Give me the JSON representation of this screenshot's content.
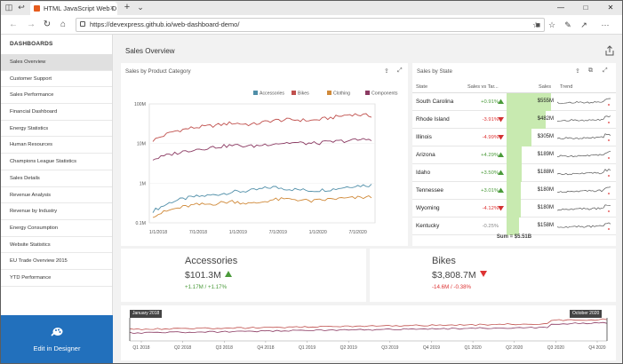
{
  "browser": {
    "tab_title": "HTML JavaScript Web D",
    "url": "https://devexpress.github.io/web-dashboard-demo/"
  },
  "sidebar": {
    "header": "DASHBOARDS",
    "items": [
      {
        "label": "Sales Overview",
        "active": true
      },
      {
        "label": "Customer Support"
      },
      {
        "label": "Sales Performance"
      },
      {
        "label": "Financial Dashboard"
      },
      {
        "label": "Energy Statistics"
      },
      {
        "label": "Human Resources"
      },
      {
        "label": "Champions League Statistics"
      },
      {
        "label": "Sales Details"
      },
      {
        "label": "Revenue Analysis"
      },
      {
        "label": "Revenue by Industry"
      },
      {
        "label": "Energy Consumption"
      },
      {
        "label": "Website Statistics"
      },
      {
        "label": "EU Trade Overview 2015"
      },
      {
        "label": "YTD Performance"
      }
    ],
    "designer_label": "Edit in Designer"
  },
  "main": {
    "title": "Sales Overview"
  },
  "product_chart": {
    "title": "Sales by Product Category",
    "legend": [
      {
        "name": "Accessories",
        "color": "#4f8ea8"
      },
      {
        "name": "Bikes",
        "color": "#c0504d"
      },
      {
        "name": "Clothing",
        "color": "#d08a3a"
      },
      {
        "name": "Components",
        "color": "#8b3a62"
      }
    ]
  },
  "chart_data": {
    "type": "line",
    "title": "Sales by Product Category",
    "y_scale": "log",
    "ylim": [
      0.1,
      100
    ],
    "yticks": [
      "0.1M",
      "1M",
      "10M",
      "100M"
    ],
    "xticks": [
      "1/1/2018",
      "7/1/2018",
      "1/1/2019",
      "7/1/2019",
      "1/1/2020",
      "7/1/2020"
    ],
    "x": [
      "2018-01",
      "2018-04",
      "2018-07",
      "2018-10",
      "2019-01",
      "2019-04",
      "2019-07",
      "2019-10",
      "2020-01",
      "2020-04",
      "2020-07",
      "2020-10"
    ],
    "series": [
      {
        "name": "Accessories",
        "color": "#4f8ea8",
        "values": [
          0.2,
          0.35,
          0.45,
          0.5,
          0.6,
          0.65,
          0.8,
          0.7,
          0.65,
          0.7,
          0.85,
          0.9
        ]
      },
      {
        "name": "Bikes",
        "color": "#c0504d",
        "values": [
          12,
          20,
          25,
          28,
          33,
          30,
          38,
          40,
          38,
          45,
          55,
          50
        ]
      },
      {
        "name": "Clothing",
        "color": "#d08a3a",
        "values": [
          0.15,
          0.22,
          0.28,
          0.3,
          0.35,
          0.3,
          0.38,
          0.4,
          0.35,
          0.4,
          0.42,
          0.45
        ]
      },
      {
        "name": "Components",
        "color": "#8b3a62",
        "values": [
          4,
          5.5,
          7,
          8,
          9,
          8.5,
          10,
          10.5,
          10,
          11,
          12,
          13
        ]
      }
    ]
  },
  "state_grid": {
    "title": "Sales by State",
    "columns": [
      "State",
      "Sales vs Tar...",
      "Sales",
      "Trend"
    ],
    "rows": [
      {
        "state": "South Carolina",
        "pct": "+0.91%",
        "dir": "up",
        "sales": "$555M",
        "bar": 1.0
      },
      {
        "state": "Rhode Island",
        "pct": "-3.91%",
        "dir": "down",
        "sales": "$482M",
        "bar": 0.87
      },
      {
        "state": "Illinois",
        "pct": "-4.99%",
        "dir": "down",
        "sales": "$305M",
        "bar": 0.55
      },
      {
        "state": "Arizona",
        "pct": "+4.29%",
        "dir": "up",
        "sales": "$189M",
        "bar": 0.34
      },
      {
        "state": "Idaho",
        "pct": "+3.50%",
        "dir": "up",
        "sales": "$188M",
        "bar": 0.34
      },
      {
        "state": "Tennessee",
        "pct": "+3.01%",
        "dir": "up",
        "sales": "$180M",
        "bar": 0.32
      },
      {
        "state": "Wyoming",
        "pct": "-4.12%",
        "dir": "down",
        "sales": "$180M",
        "bar": 0.32
      },
      {
        "state": "Kentucky",
        "pct": "-0.25%",
        "dir": "none",
        "sales": "$158M",
        "bar": 0.28
      }
    ],
    "sum_label": "Sum = $5.51B"
  },
  "kpis": [
    {
      "name": "Accessories",
      "value": "$101.3M",
      "dir": "up",
      "delta": "+1.17M / +1.17%"
    },
    {
      "name": "Bikes",
      "value": "$3,808.7M",
      "dir": "down",
      "delta": "-14.6M / -0.38%"
    }
  ],
  "range": {
    "start_label": "January 2018",
    "end_label": "October 2020",
    "ticks": [
      "Q1 2018",
      "Q2 2018",
      "Q3 2018",
      "Q4 2018",
      "Q1 2019",
      "Q2 2019",
      "Q3 2019",
      "Q4 2019",
      "Q1 2020",
      "Q2 2020",
      "Q3 2020",
      "Q4 2020"
    ]
  },
  "colors": {
    "accent": "#2270bc",
    "positive": "#4a9a3a",
    "negative": "#d33333",
    "bar_fill": "#c8eab0"
  }
}
